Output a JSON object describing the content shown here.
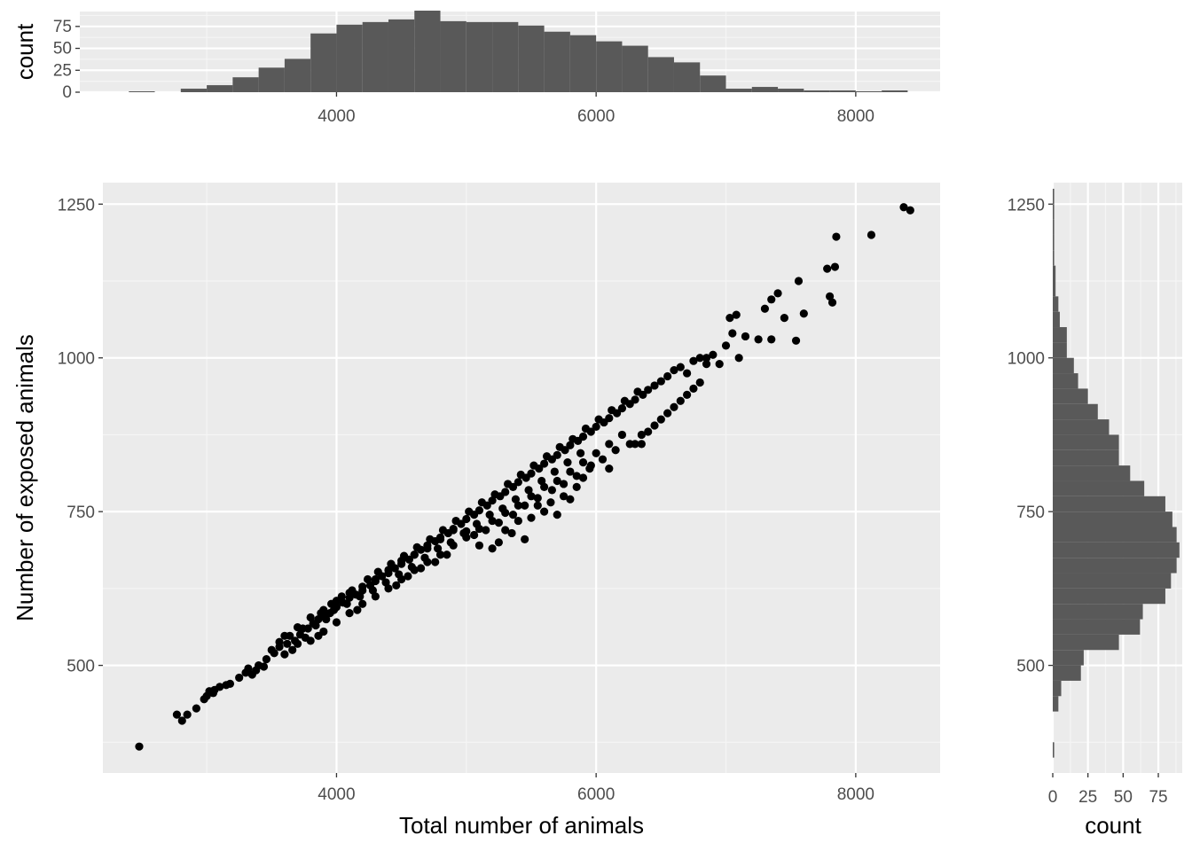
{
  "chart_data": [
    {
      "type": "scatter",
      "xlabel": "Total number of animals",
      "ylabel": "Number of exposed animals",
      "xlim": [
        2200,
        8650
      ],
      "ylim": [
        325,
        1285
      ],
      "x_ticks": [
        4000,
        6000,
        8000
      ],
      "y_ticks": [
        500,
        750,
        1000,
        1250
      ],
      "grid": true,
      "point_color": "#000000",
      "panel_color": "#ebebeb",
      "points": [
        [
          2480,
          368
        ],
        [
          2770,
          420
        ],
        [
          2810,
          410
        ],
        [
          2850,
          420
        ],
        [
          2920,
          430
        ],
        [
          3000,
          450
        ],
        [
          3060,
          460
        ],
        [
          3100,
          465
        ],
        [
          3180,
          470
        ],
        [
          3250,
          480
        ],
        [
          3320,
          495
        ],
        [
          3400,
          500
        ],
        [
          3460,
          510
        ],
        [
          3520,
          520
        ],
        [
          3560,
          530
        ],
        [
          3620,
          535
        ],
        [
          3680,
          540
        ],
        [
          3720,
          550
        ],
        [
          3780,
          560
        ],
        [
          3820,
          568
        ],
        [
          3860,
          575
        ],
        [
          3900,
          580
        ],
        [
          3950,
          585
        ],
        [
          4000,
          595
        ],
        [
          4050,
          602
        ],
        [
          4100,
          610
        ],
        [
          4150,
          615
        ],
        [
          4200,
          622
        ],
        [
          4260,
          630
        ],
        [
          4300,
          637
        ],
        [
          4350,
          645
        ],
        [
          4400,
          650
        ],
        [
          4450,
          658
        ],
        [
          4500,
          665
        ],
        [
          4560,
          672
        ],
        [
          4600,
          680
        ],
        [
          4650,
          688
        ],
        [
          4700,
          695
        ],
        [
          4760,
          702
        ],
        [
          4800,
          708
        ],
        [
          4860,
          715
        ],
        [
          4900,
          722
        ],
        [
          4960,
          730
        ],
        [
          5000,
          738
        ],
        [
          5060,
          745
        ],
        [
          5100,
          752
        ],
        [
          5160,
          760
        ],
        [
          5200,
          768
        ],
        [
          5260,
          775
        ],
        [
          5300,
          782
        ],
        [
          5360,
          790
        ],
        [
          5400,
          798
        ],
        [
          5460,
          805
        ],
        [
          5500,
          812
        ],
        [
          5560,
          820
        ],
        [
          5600,
          828
        ],
        [
          5660,
          835
        ],
        [
          5700,
          842
        ],
        [
          5760,
          850
        ],
        [
          5800,
          858
        ],
        [
          5860,
          865
        ],
        [
          5900,
          872
        ],
        [
          5960,
          880
        ],
        [
          6000,
          888
        ],
        [
          6060,
          895
        ],
        [
          6100,
          902
        ],
        [
          6160,
          910
        ],
        [
          6200,
          918
        ],
        [
          6260,
          925
        ],
        [
          6300,
          932
        ],
        [
          6360,
          940
        ],
        [
          6400,
          948
        ],
        [
          6450,
          955
        ],
        [
          6500,
          962
        ],
        [
          6550,
          970
        ],
        [
          6600,
          980
        ],
        [
          6650,
          985
        ],
        [
          3700,
          535
        ],
        [
          3760,
          545
        ],
        [
          3840,
          565
        ],
        [
          3920,
          575
        ],
        [
          3980,
          590
        ],
        [
          4080,
          600
        ],
        [
          4180,
          612
        ],
        [
          4280,
          622
        ],
        [
          4380,
          635
        ],
        [
          4480,
          648
        ],
        [
          4580,
          660
        ],
        [
          4680,
          675
        ],
        [
          4780,
          690
        ],
        [
          4880,
          700
        ],
        [
          4980,
          715
        ],
        [
          5080,
          730
        ],
        [
          5180,
          745
        ],
        [
          5280,
          755
        ],
        [
          5380,
          770
        ],
        [
          5480,
          785
        ],
        [
          5580,
          800
        ],
        [
          5680,
          815
        ],
        [
          5780,
          830
        ],
        [
          5880,
          845
        ],
        [
          3500,
          525
        ],
        [
          3560,
          538
        ],
        [
          3640,
          548
        ],
        [
          3740,
          560
        ],
        [
          3880,
          585
        ],
        [
          3960,
          600
        ],
        [
          4040,
          612
        ],
        [
          4120,
          622
        ],
        [
          4240,
          640
        ],
        [
          4320,
          652
        ],
        [
          4420,
          665
        ],
        [
          4520,
          678
        ],
        [
          4620,
          692
        ],
        [
          4720,
          705
        ],
        [
          4820,
          720
        ],
        [
          4920,
          735
        ],
        [
          5020,
          750
        ],
        [
          5120,
          765
        ],
        [
          5220,
          778
        ],
        [
          5320,
          795
        ],
        [
          5420,
          810
        ],
        [
          5520,
          825
        ],
        [
          5620,
          840
        ],
        [
          5720,
          855
        ],
        [
          5820,
          868
        ],
        [
          5920,
          885
        ],
        [
          6020,
          900
        ],
        [
          6120,
          915
        ],
        [
          6220,
          930
        ],
        [
          6320,
          945
        ],
        [
          3800,
          540
        ],
        [
          3900,
          555
        ],
        [
          4000,
          570
        ],
        [
          4100,
          585
        ],
        [
          4200,
          600
        ],
        [
          4300,
          612
        ],
        [
          4400,
          625
        ],
        [
          4500,
          640
        ],
        [
          4600,
          655
        ],
        [
          4700,
          668
        ],
        [
          4800,
          680
        ],
        [
          4900,
          695
        ],
        [
          5000,
          708
        ],
        [
          5100,
          722
        ],
        [
          5200,
          735
        ],
        [
          5300,
          748
        ],
        [
          5400,
          760
        ],
        [
          5500,
          775
        ],
        [
          5600,
          790
        ],
        [
          5700,
          800
        ],
        [
          5800,
          815
        ],
        [
          5900,
          830
        ],
        [
          6000,
          845
        ],
        [
          6100,
          860
        ],
        [
          3380,
          492
        ],
        [
          3440,
          498
        ],
        [
          3600,
          518
        ],
        [
          3660,
          525
        ],
        [
          3860,
          548
        ],
        [
          4160,
          590
        ],
        [
          4460,
          630
        ],
        [
          4760,
          668
        ],
        [
          5060,
          712
        ],
        [
          5360,
          745
        ],
        [
          5660,
          785
        ],
        [
          5960,
          825
        ],
        [
          6260,
          860
        ],
        [
          6400,
          880
        ],
        [
          6500,
          900
        ],
        [
          6600,
          920
        ],
        [
          6700,
          940
        ],
        [
          6800,
          960
        ],
        [
          4550,
          645
        ],
        [
          4650,
          658
        ],
        [
          4850,
          680
        ],
        [
          5150,
          720
        ],
        [
          5250,
          732
        ],
        [
          5450,
          760
        ],
        [
          5550,
          772
        ],
        [
          5750,
          795
        ],
        [
          5850,
          808
        ],
        [
          6050,
          835
        ],
        [
          6150,
          850
        ],
        [
          6350,
          875
        ],
        [
          6450,
          890
        ],
        [
          6550,
          910
        ],
        [
          6650,
          930
        ],
        [
          6750,
          950
        ],
        [
          6850,
          1000
        ],
        [
          6950,
          990
        ],
        [
          5300,
          720
        ],
        [
          5350,
          715
        ],
        [
          5400,
          735
        ],
        [
          5450,
          705
        ],
        [
          5500,
          740
        ],
        [
          5550,
          760
        ],
        [
          5600,
          750
        ],
        [
          5650,
          765
        ],
        [
          5700,
          745
        ],
        [
          5750,
          775
        ],
        [
          5800,
          770
        ],
        [
          5850,
          790
        ],
        [
          5900,
          805
        ],
        [
          5950,
          820
        ],
        [
          6100,
          820
        ],
        [
          6200,
          875
        ],
        [
          6300,
          860
        ],
        [
          6350,
          860
        ],
        [
          5250,
          700
        ],
        [
          5200,
          690
        ],
        [
          5100,
          695
        ],
        [
          5000,
          718
        ],
        [
          4900,
          720
        ],
        [
          4800,
          705
        ],
        [
          4700,
          690
        ],
        [
          4600,
          680
        ],
        [
          4500,
          670
        ],
        [
          4400,
          655
        ],
        [
          4300,
          640
        ],
        [
          4200,
          628
        ],
        [
          4100,
          618
        ],
        [
          4000,
          605
        ],
        [
          3900,
          590
        ],
        [
          3800,
          578
        ],
        [
          3700,
          562
        ],
        [
          3600,
          548
        ],
        [
          3300,
          488
        ],
        [
          3350,
          485
        ],
        [
          3150,
          468
        ],
        [
          3050,
          455
        ],
        [
          2980,
          445
        ],
        [
          3020,
          458
        ],
        [
          6700,
          975
        ],
        [
          6750,
          995
        ],
        [
          6800,
          1000
        ],
        [
          6850,
          990
        ],
        [
          6900,
          1005
        ],
        [
          7000,
          1020
        ],
        [
          7050,
          1040
        ],
        [
          7080,
          1070
        ],
        [
          7030,
          1065
        ],
        [
          7100,
          1000
        ],
        [
          7150,
          1035
        ],
        [
          7250,
          1030
        ],
        [
          7300,
          1080
        ],
        [
          7350,
          1095
        ],
        [
          7400,
          1105
        ],
        [
          7450,
          1065
        ],
        [
          7350,
          1030
        ],
        [
          7560,
          1125
        ],
        [
          7600,
          1072
        ],
        [
          7540,
          1028
        ],
        [
          7780,
          1145
        ],
        [
          7800,
          1100
        ],
        [
          7820,
          1090
        ],
        [
          7840,
          1148
        ],
        [
          7850,
          1197
        ],
        [
          8120,
          1200
        ],
        [
          8370,
          1245
        ],
        [
          8420,
          1240
        ]
      ]
    },
    {
      "type": "bar",
      "orientation": "vertical",
      "ylabel": "count",
      "xlim": [
        2200,
        8650
      ],
      "ylim": [
        0,
        92
      ],
      "x_ticks": [
        4000,
        6000,
        8000
      ],
      "y_ticks": [
        0,
        25,
        50,
        75
      ],
      "bar_color": "#595959",
      "bin_width": 200,
      "bins_start": [
        2400,
        2600,
        2800,
        3000,
        3200,
        3400,
        3600,
        3800,
        4000,
        4200,
        4400,
        4600,
        4800,
        5000,
        5200,
        5400,
        5600,
        5800,
        6000,
        6200,
        6400,
        6600,
        6800,
        7000,
        7200,
        7400,
        7600,
        7800,
        8000,
        8200
      ],
      "counts": [
        1,
        0,
        4,
        8,
        17,
        28,
        38,
        67,
        77,
        80,
        83,
        93,
        81,
        80,
        80,
        76,
        69,
        65,
        58,
        53,
        40,
        34,
        19,
        4,
        6,
        4,
        2,
        2,
        1,
        2
      ]
    },
    {
      "type": "bar",
      "orientation": "horizontal",
      "xlabel": "count",
      "xlim": [
        0,
        92
      ],
      "ylim": [
        325,
        1285
      ],
      "x_ticks": [
        0,
        25,
        50,
        75
      ],
      "y_ticks": [
        500,
        750,
        1000,
        1250
      ],
      "bar_color": "#595959",
      "bin_width": 25,
      "bins_start": [
        350,
        375,
        400,
        425,
        450,
        475,
        500,
        525,
        550,
        575,
        600,
        625,
        650,
        675,
        700,
        725,
        750,
        775,
        800,
        825,
        850,
        875,
        900,
        925,
        950,
        975,
        1000,
        1025,
        1050,
        1075,
        1100,
        1125,
        1150,
        1175,
        1200,
        1225,
        1250
      ],
      "counts": [
        1,
        0,
        0,
        4,
        6,
        20,
        22,
        47,
        62,
        64,
        80,
        84,
        88,
        90,
        88,
        85,
        80,
        65,
        55,
        47,
        47,
        40,
        32,
        25,
        18,
        15,
        10,
        10,
        5,
        4,
        2,
        2,
        1,
        1,
        1,
        1,
        1
      ]
    }
  ]
}
